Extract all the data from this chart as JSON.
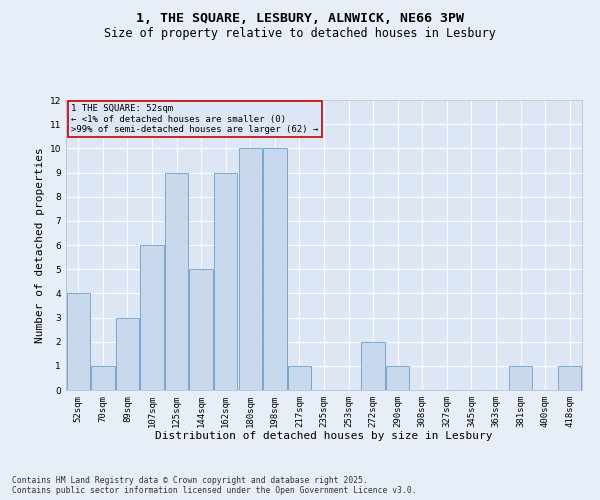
{
  "title": "1, THE SQUARE, LESBURY, ALNWICK, NE66 3PW",
  "subtitle": "Size of property relative to detached houses in Lesbury",
  "xlabel": "Distribution of detached houses by size in Lesbury",
  "ylabel": "Number of detached properties",
  "categories": [
    "52sqm",
    "70sqm",
    "89sqm",
    "107sqm",
    "125sqm",
    "144sqm",
    "162sqm",
    "180sqm",
    "198sqm",
    "217sqm",
    "235sqm",
    "253sqm",
    "272sqm",
    "290sqm",
    "308sqm",
    "327sqm",
    "345sqm",
    "363sqm",
    "381sqm",
    "400sqm",
    "418sqm"
  ],
  "values": [
    4,
    1,
    3,
    6,
    9,
    5,
    9,
    10,
    10,
    1,
    0,
    0,
    2,
    1,
    0,
    0,
    0,
    0,
    1,
    0,
    1
  ],
  "bar_color": "#c9d9ed",
  "bar_edge_color": "#6b9fc9",
  "highlight_box_color": "#cc0000",
  "annotation_title": "1 THE SQUARE: 52sqm",
  "annotation_line1": "← <1% of detached houses are smaller (0)",
  "annotation_line2": ">99% of semi-detached houses are larger (62) →",
  "ylim": [
    0,
    12
  ],
  "yticks": [
    0,
    1,
    2,
    3,
    4,
    5,
    6,
    7,
    8,
    9,
    10,
    11,
    12
  ],
  "background_color": "#e8eef7",
  "plot_bg_color": "#dce6f5",
  "grid_color": "#ffffff",
  "footer": "Contains HM Land Registry data © Crown copyright and database right 2025.\nContains public sector information licensed under the Open Government Licence v3.0.",
  "title_fontsize": 9.5,
  "subtitle_fontsize": 8.5,
  "axis_label_fontsize": 8,
  "tick_fontsize": 6.5,
  "annotation_fontsize": 6.5,
  "footer_fontsize": 5.8
}
